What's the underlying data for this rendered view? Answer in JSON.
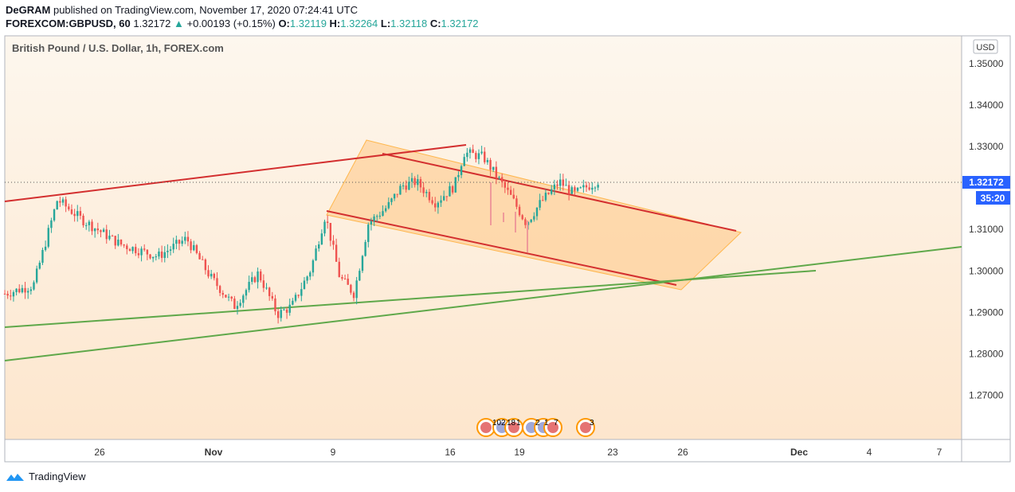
{
  "header": {
    "publisher": "DeGRAM",
    "published_text": "published on TradingView.com, November 17, 2020 07:24:41 UTC",
    "symbol": "FOREXCOM:GBPUSD, 60",
    "last": "1.32172",
    "change": "+0.00193 (+0.15%)",
    "o_label": "O:",
    "o": "1.32119",
    "h_label": "H:",
    "h": "1.32264",
    "l_label": "L:",
    "l": "1.32118",
    "c_label": "C:",
    "c": "1.32172"
  },
  "chart_data": {
    "type": "candlestick",
    "title": "British Pound / U.S. Dollar, 1h, FOREX.com",
    "currency": "USD",
    "y_ticks": [
      "1.35000",
      "1.34000",
      "1.33000",
      "1.31000",
      "1.30000",
      "1.29000",
      "1.28000",
      "1.27000"
    ],
    "x_ticks": [
      "26",
      "Nov",
      "9",
      "16",
      "19",
      "23",
      "26",
      "Dec",
      "4",
      "7"
    ],
    "current_price": "1.32172",
    "countdown": "35:20",
    "event_badges": [
      "10",
      "2",
      "18",
      "1",
      "2",
      "1",
      "7",
      "3"
    ],
    "colors": {
      "up": "#26a69a",
      "down": "#ef5350",
      "channel_fill": "#ffcc80",
      "channel_line": "#e53935",
      "support_line": "#43a047",
      "background_top": "#fdf6ec",
      "background_bottom": "#fde7cf"
    },
    "price_anchors": [
      [
        0.0,
        1.2945
      ],
      [
        0.03,
        1.2965
      ],
      [
        0.055,
        1.3172
      ],
      [
        0.08,
        1.3125
      ],
      [
        0.12,
        1.3065
      ],
      [
        0.16,
        1.3035
      ],
      [
        0.19,
        1.3078
      ],
      [
        0.215,
        1.2985
      ],
      [
        0.24,
        1.2915
      ],
      [
        0.265,
        1.2995
      ],
      [
        0.285,
        1.2895
      ],
      [
        0.3,
        1.2915
      ],
      [
        0.32,
        1.3005
      ],
      [
        0.335,
        1.3135
      ],
      [
        0.35,
        1.2985
      ],
      [
        0.365,
        1.2945
      ],
      [
        0.38,
        1.3115
      ],
      [
        0.4,
        1.3155
      ],
      [
        0.415,
        1.3205
      ],
      [
        0.43,
        1.3215
      ],
      [
        0.45,
        1.3165
      ],
      [
        0.47,
        1.3205
      ],
      [
        0.48,
        1.3285
      ],
      [
        0.5,
        1.3275
      ],
      [
        0.515,
        1.3225
      ],
      [
        0.53,
        1.3175
      ],
      [
        0.545,
        1.3115
      ],
      [
        0.56,
        1.3165
      ],
      [
        0.58,
        1.3215
      ],
      [
        0.595,
        1.3185
      ],
      [
        0.61,
        1.3205
      ],
      [
        0.62,
        1.3217
      ]
    ]
  },
  "footer": {
    "brand": "TradingView"
  }
}
